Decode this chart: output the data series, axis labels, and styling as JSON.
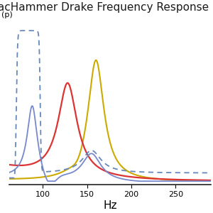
{
  "title": "TacHammer Drake Frequency Response",
  "xlabel": "Hz",
  "ylabel": "(p)",
  "xlim": [
    62,
    290
  ],
  "ylim": [
    0,
    1.05
  ],
  "bg_color": "#ffffff",
  "grid_color": "#d0d0d0",
  "line_blue_solid_color": "#7788cc",
  "line_blue_dashed_color": "#6688bb",
  "line_red_color": "#dd3333",
  "line_yellow_color": "#ccaa00",
  "title_fontsize": 11,
  "xlabel_fontsize": 11,
  "ylabel_fontsize": 8,
  "tick_fontsize": 8
}
